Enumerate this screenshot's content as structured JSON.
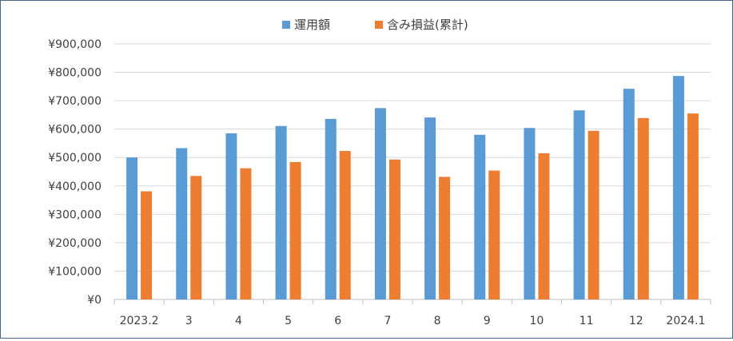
{
  "chart_data": {
    "type": "bar",
    "title": "",
    "xlabel": "",
    "ylabel": "",
    "categories": [
      "2023.2",
      "3",
      "4",
      "5",
      "6",
      "7",
      "8",
      "9",
      "10",
      "11",
      "12",
      "2024.1"
    ],
    "series": [
      {
        "name": "運用額",
        "color": "#5b9bd5",
        "values": [
          500000,
          533000,
          585000,
          611000,
          636000,
          674000,
          641000,
          580000,
          604000,
          666000,
          742000,
          787000
        ]
      },
      {
        "name": "含み損益(累計)",
        "color": "#ed7d31",
        "values": [
          381000,
          435000,
          462000,
          484000,
          523000,
          493000,
          432000,
          454000,
          515000,
          594000,
          639000,
          655000
        ]
      }
    ],
    "ylim": [
      0,
      900000
    ],
    "y_ticks": [
      "¥0",
      "¥100,000",
      "¥200,000",
      "¥300,000",
      "¥400,000",
      "¥500,000",
      "¥600,000",
      "¥700,000",
      "¥800,000",
      "¥900,000"
    ],
    "gridlines": true,
    "legend_position": "top-center"
  }
}
